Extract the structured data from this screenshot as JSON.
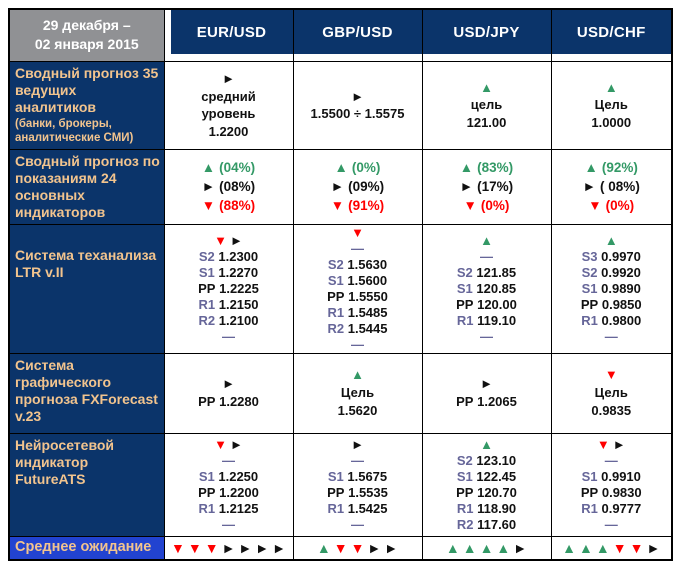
{
  "colors": {
    "navy": "#0B346A",
    "gray": "#909194",
    "tan": "#F2C48E",
    "avg_blue": "#2243D0",
    "green": "#339966",
    "red": "#FF0000",
    "slate": "#666699",
    "ink": "#111111"
  },
  "header": {
    "date_range": "29 декабря –\n02 января 2015",
    "columns": [
      "EUR/USD",
      "GBP/USD",
      "USD/JPY",
      "USD/CHF"
    ]
  },
  "rows": [
    {
      "id": "analysts",
      "label_main": "Сводный прогноз 35 ведущих аналитиков",
      "label_sub": "(банки, брокеры, аналитические СМИ)",
      "cells": [
        [
          [
            {
              "arrow": "right"
            }
          ],
          [
            {
              "text": "средний",
              "color": "black"
            }
          ],
          [
            {
              "text": "уровень",
              "color": "black"
            }
          ],
          [
            {
              "text": "1.2200",
              "color": "black"
            }
          ]
        ],
        [
          [
            {
              "arrow": "right"
            }
          ],
          [
            {
              "text": "1.5500 ÷ 1.5575",
              "color": "black"
            }
          ]
        ],
        [
          [
            {
              "arrow": "up"
            }
          ],
          [
            {
              "text": "цель",
              "color": "black"
            }
          ],
          [
            {
              "text": "121.00",
              "color": "black"
            }
          ]
        ],
        [
          [
            {
              "arrow": "up"
            }
          ],
          [
            {
              "text": "Цель",
              "color": "black"
            }
          ],
          [
            {
              "text": "1.0000",
              "color": "black"
            }
          ]
        ]
      ]
    },
    {
      "id": "indicators",
      "label_main": "Сводный прогноз по показаниям 24 основных индикаторов",
      "label_sub": "",
      "cells": [
        [
          [
            {
              "arrow": "up"
            },
            {
              "text": "(04%)",
              "color": "green"
            }
          ],
          [
            {
              "arrow": "right"
            },
            {
              "text": "(08%)",
              "color": "black"
            }
          ],
          [
            {
              "arrow": "down"
            },
            {
              "text": "(88%)",
              "color": "red"
            }
          ]
        ],
        [
          [
            {
              "arrow": "up"
            },
            {
              "text": "(0%)",
              "color": "green"
            }
          ],
          [
            {
              "arrow": "right"
            },
            {
              "text": "(09%)",
              "color": "black"
            }
          ],
          [
            {
              "arrow": "down"
            },
            {
              "text": "(91%)",
              "color": "red"
            }
          ]
        ],
        [
          [
            {
              "arrow": "up"
            },
            {
              "text": "(83%)",
              "color": "green"
            }
          ],
          [
            {
              "arrow": "right"
            },
            {
              "text": "(17%)",
              "color": "black"
            }
          ],
          [
            {
              "arrow": "down"
            },
            {
              "text": "(0%)",
              "color": "red"
            }
          ]
        ],
        [
          [
            {
              "arrow": "up"
            },
            {
              "text": "(92%)",
              "color": "green"
            }
          ],
          [
            {
              "arrow": "right"
            },
            {
              "text": "( 08%)",
              "color": "black"
            }
          ],
          [
            {
              "arrow": "down"
            },
            {
              "text": "(0%)",
              "color": "red"
            }
          ]
        ]
      ]
    },
    {
      "id": "ltr",
      "label_main": "Система теханализа LTR v.II",
      "label_sub": "",
      "cells": [
        [
          [
            {
              "arrow": "down"
            },
            {
              "arrow": "right"
            }
          ],
          [
            {
              "level": "S2",
              "value": "1.2300"
            }
          ],
          [
            {
              "level": "S1",
              "value": "1.2270"
            }
          ],
          [
            {
              "level": "PP",
              "value": "1.2225"
            }
          ],
          [
            {
              "level": "R1",
              "value": "1.2150"
            }
          ],
          [
            {
              "level": "R2",
              "value": "1.2100"
            }
          ],
          [
            {
              "dash": true
            }
          ]
        ],
        [
          [
            {
              "arrow": "down"
            }
          ],
          [
            {
              "dash": true
            }
          ],
          [
            {
              "level": "S2",
              "value": "1.5630"
            }
          ],
          [
            {
              "level": "S1",
              "value": "1.5600"
            }
          ],
          [
            {
              "level": "PP",
              "value": "1.5550"
            }
          ],
          [
            {
              "level": "R1",
              "value": "1.5485"
            }
          ],
          [
            {
              "level": "R2",
              "value": "1.5445"
            }
          ],
          [
            {
              "dash": true
            }
          ]
        ],
        [
          [
            {
              "arrow": "up"
            }
          ],
          [
            {
              "dash": true
            }
          ],
          [
            {
              "level": "S2",
              "value": "121.85"
            }
          ],
          [
            {
              "level": "S1",
              "value": "120.85"
            }
          ],
          [
            {
              "level": "PP",
              "value": "120.00"
            }
          ],
          [
            {
              "level": "R1",
              "value": "119.10"
            }
          ],
          [
            {
              "dash": true
            }
          ]
        ],
        [
          [
            {
              "arrow": "up"
            }
          ],
          [
            {
              "level": "S3",
              "value": "0.9970"
            }
          ],
          [
            {
              "level": "S2",
              "value": "0.9920"
            }
          ],
          [
            {
              "level": "S1",
              "value": "0.9890"
            }
          ],
          [
            {
              "level": "PP",
              "value": "0.9850"
            }
          ],
          [
            {
              "level": "R1",
              "value": "0.9800"
            }
          ],
          [
            {
              "dash": true
            }
          ]
        ]
      ]
    },
    {
      "id": "fxforecast",
      "label_main": "Система графического прогноза FXForecast v.23",
      "label_sub": "",
      "cells": [
        [
          [
            {
              "arrow": "right"
            }
          ],
          [
            {
              "level": "PP",
              "value": "1.2280"
            }
          ]
        ],
        [
          [
            {
              "arrow": "up"
            }
          ],
          [
            {
              "text": "Цель",
              "color": "black"
            }
          ],
          [
            {
              "text": "1.5620",
              "color": "black"
            }
          ]
        ],
        [
          [
            {
              "arrow": "right"
            }
          ],
          [
            {
              "level": "PP",
              "value": "1.2065"
            }
          ]
        ],
        [
          [
            {
              "arrow": "down"
            }
          ],
          [
            {
              "text": "Цель",
              "color": "black"
            }
          ],
          [
            {
              "text": "0.9835",
              "color": "black"
            }
          ]
        ]
      ]
    },
    {
      "id": "futureats",
      "label_main": "Нейросетевой индикатор FutureATS",
      "label_sub": "",
      "cells": [
        [
          [
            {
              "arrow": "down"
            },
            {
              "arrow": "right"
            }
          ],
          [
            {
              "dash": true
            }
          ],
          [
            {
              "level": "S1",
              "value": "1.2250"
            }
          ],
          [
            {
              "level": "PP",
              "value": "1.2200"
            }
          ],
          [
            {
              "level": "R1",
              "value": "1.2125"
            }
          ],
          [
            {
              "dash": true
            }
          ]
        ],
        [
          [
            {
              "arrow": "right"
            }
          ],
          [
            {
              "dash": true
            }
          ],
          [
            {
              "level": "S1",
              "value": "1.5675"
            }
          ],
          [
            {
              "level": "PP",
              "value": "1.5535"
            }
          ],
          [
            {
              "level": "R1",
              "value": "1.5425"
            }
          ],
          [
            {
              "dash": true
            }
          ]
        ],
        [
          [
            {
              "arrow": "up"
            }
          ],
          [
            {
              "level": "S2",
              "value": "123.10"
            }
          ],
          [
            {
              "level": "S1",
              "value": "122.45"
            }
          ],
          [
            {
              "level": "PP",
              "value": "120.70"
            }
          ],
          [
            {
              "level": "R1",
              "value": "118.90"
            }
          ],
          [
            {
              "level": "R2",
              "value": "117.60"
            }
          ]
        ],
        [
          [
            {
              "arrow": "down"
            },
            {
              "arrow": "right"
            }
          ],
          [
            {
              "dash": true
            }
          ],
          [
            {
              "level": "S1",
              "value": "0.9910"
            }
          ],
          [
            {
              "level": "PP",
              "value": "0.9830"
            }
          ],
          [
            {
              "level": "R1",
              "value": "0.9777"
            }
          ],
          [
            {
              "dash": true
            }
          ]
        ]
      ]
    },
    {
      "id": "average",
      "label_main": "Среднее ожидание",
      "label_sub": "",
      "cells": [
        [
          [
            {
              "arrow": "down"
            },
            {
              "arrow": "down"
            },
            {
              "arrow": "down"
            },
            {
              "arrow": "right"
            },
            {
              "arrow": "right"
            },
            {
              "arrow": "right"
            },
            {
              "arrow": "right"
            }
          ]
        ],
        [
          [
            {
              "arrow": "up"
            },
            {
              "arrow": "down"
            },
            {
              "arrow": "down"
            },
            {
              "arrow": "right"
            },
            {
              "arrow": "right"
            }
          ]
        ],
        [
          [
            {
              "arrow": "up"
            },
            {
              "arrow": "up"
            },
            {
              "arrow": "up"
            },
            {
              "arrow": "up"
            },
            {
              "arrow": "right"
            }
          ]
        ],
        [
          [
            {
              "arrow": "up"
            },
            {
              "arrow": "up"
            },
            {
              "arrow": "up"
            },
            {
              "arrow": "down"
            },
            {
              "arrow": "down"
            },
            {
              "arrow": "right"
            }
          ]
        ]
      ]
    }
  ]
}
